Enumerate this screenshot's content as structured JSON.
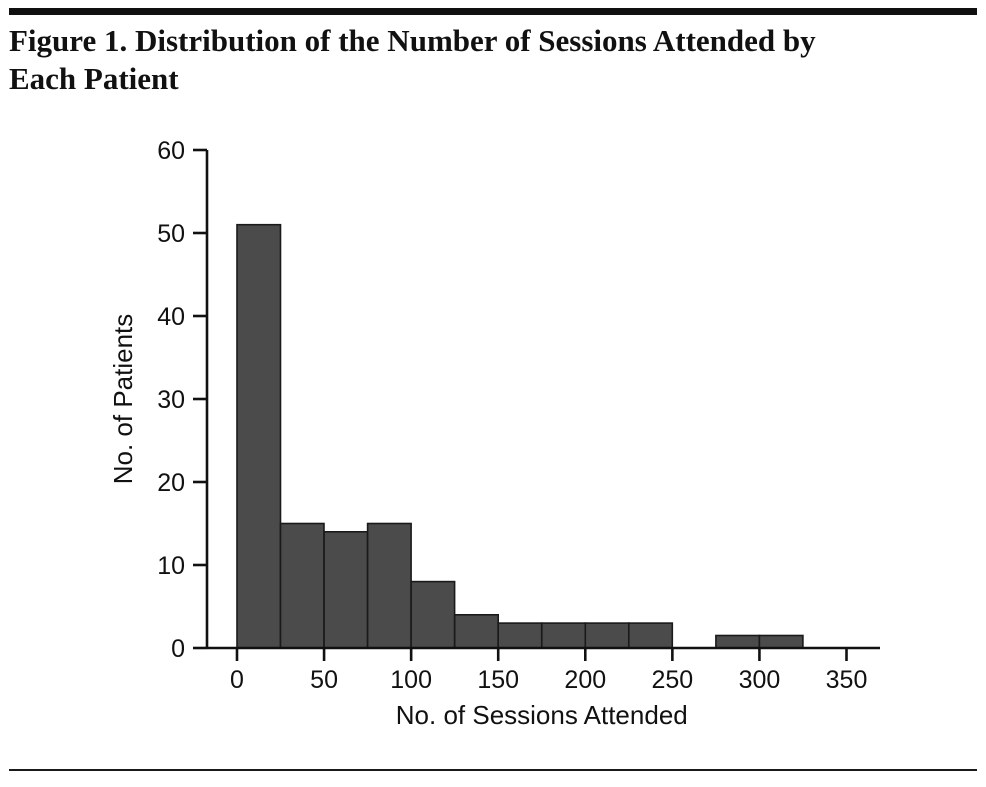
{
  "figure": {
    "title": "Figure 1. Distribution of the Number of Sessions Attended by Each Patient",
    "title_line1": "Figure 1. Distribution of the Number of Sessions Attended by",
    "title_line2": "Each Patient"
  },
  "chart_data": {
    "type": "bar",
    "subtype": "histogram",
    "title": "Figure 1. Distribution of the Number of Sessions Attended by Each Patient",
    "xlabel": "No. of Sessions Attended",
    "ylabel": "No. of Patients",
    "xlim": [
      -17,
      370
    ],
    "ylim": [
      0,
      60
    ],
    "x_ticks": [
      0,
      50,
      100,
      150,
      200,
      250,
      300,
      350
    ],
    "y_ticks": [
      0,
      10,
      20,
      30,
      40,
      50,
      60
    ],
    "bin_width": 25,
    "bins": [
      {
        "start": 0,
        "count": 51
      },
      {
        "start": 25,
        "count": 15
      },
      {
        "start": 50,
        "count": 14
      },
      {
        "start": 75,
        "count": 15
      },
      {
        "start": 100,
        "count": 8
      },
      {
        "start": 125,
        "count": 4
      },
      {
        "start": 150,
        "count": 3
      },
      {
        "start": 175,
        "count": 3
      },
      {
        "start": 200,
        "count": 3
      },
      {
        "start": 225,
        "count": 3
      },
      {
        "start": 250,
        "count": 0
      },
      {
        "start": 275,
        "count": 1.5
      },
      {
        "start": 300,
        "count": 1.5
      },
      {
        "start": 325,
        "count": 0
      }
    ],
    "grid": false,
    "legend": false,
    "bar_color": "#4b4b4b",
    "bar_border_color": "#1a1a1a",
    "axis_color": "#111111"
  }
}
